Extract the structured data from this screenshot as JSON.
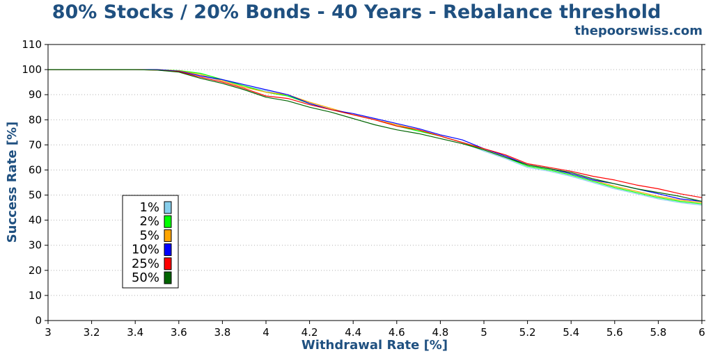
{
  "chart_data": {
    "type": "line",
    "title": "80% Stocks / 20% Bonds - 40 Years - Rebalance threshold",
    "subtitle": "thepoorswiss.com",
    "xlabel": "Withdrawal Rate [%]",
    "ylabel": "Success Rate [%]",
    "xlim": [
      3,
      6
    ],
    "ylim": [
      0,
      110
    ],
    "x_ticks": [
      "3",
      "3.2",
      "3.4",
      "3.6",
      "3.8",
      "4",
      "4.2",
      "4.4",
      "4.6",
      "4.8",
      "5",
      "5.2",
      "5.4",
      "5.6",
      "5.8",
      "6"
    ],
    "y_ticks": [
      "0",
      "10",
      "20",
      "30",
      "40",
      "50",
      "60",
      "70",
      "80",
      "90",
      "100",
      "110"
    ],
    "grid": "horizontal-dotted",
    "legend_position": "lower-left",
    "x": [
      3.0,
      3.2,
      3.4,
      3.5,
      3.6,
      3.7,
      3.8,
      3.9,
      4.0,
      4.1,
      4.2,
      4.3,
      4.4,
      4.5,
      4.6,
      4.7,
      4.8,
      4.9,
      5.0,
      5.1,
      5.2,
      5.3,
      5.4,
      5.5,
      5.6,
      5.7,
      5.8,
      5.9,
      6.0
    ],
    "series": [
      {
        "name": "1%",
        "color": "#87ceeb",
        "values": [
          100,
          100,
          100,
          100,
          99.4,
          97.5,
          95.5,
          93.5,
          91.5,
          89.5,
          86.5,
          84.0,
          82.0,
          80.0,
          78.0,
          76.0,
          73.5,
          71.0,
          67.5,
          64.5,
          61.0,
          59.5,
          57.5,
          55.0,
          52.5,
          50.5,
          48.5,
          47.0,
          46.0
        ]
      },
      {
        "name": "2%",
        "color": "#00ff00",
        "values": [
          100,
          100,
          100,
          100,
          99.6,
          98.5,
          96.0,
          93.5,
          91.0,
          89.5,
          86.5,
          84.0,
          82.0,
          80.0,
          77.5,
          75.5,
          73.5,
          71.0,
          68.0,
          65.0,
          61.5,
          60.0,
          58.0,
          55.5,
          53.0,
          51.0,
          49.0,
          47.5,
          46.5
        ]
      },
      {
        "name": "5%",
        "color": "#ffa500",
        "values": [
          100,
          100,
          100,
          100,
          99.5,
          98.0,
          95.5,
          93.0,
          91.0,
          90.0,
          87.0,
          84.5,
          82.0,
          80.0,
          78.0,
          76.0,
          73.5,
          71.0,
          68.5,
          65.5,
          62.0,
          60.5,
          58.5,
          56.0,
          53.5,
          51.5,
          49.5,
          48.0,
          47.0
        ]
      },
      {
        "name": "10%",
        "color": "#0000ff",
        "values": [
          100,
          100,
          100,
          100,
          99.4,
          97.5,
          96.0,
          94.0,
          92.0,
          90.0,
          86.5,
          84.0,
          82.5,
          80.5,
          78.5,
          76.5,
          74.0,
          72.0,
          68.5,
          65.5,
          62.0,
          60.5,
          58.5,
          56.0,
          54.5,
          52.5,
          50.5,
          48.5,
          47.5
        ]
      },
      {
        "name": "25%",
        "color": "#ff0000",
        "values": [
          100,
          100,
          100,
          99.8,
          99.2,
          97.0,
          95.0,
          92.5,
          89.5,
          88.5,
          86.0,
          84.0,
          82.0,
          80.0,
          77.5,
          76.0,
          73.5,
          71.0,
          68.5,
          66.0,
          62.5,
          61.0,
          59.5,
          57.5,
          56.0,
          54.0,
          52.5,
          50.5,
          49.0
        ]
      },
      {
        "name": "50%",
        "color": "#006400",
        "values": [
          100,
          100,
          100,
          99.8,
          99.0,
          96.5,
          94.5,
          92.0,
          89.0,
          87.5,
          85.0,
          83.0,
          80.5,
          78.0,
          76.0,
          74.5,
          72.5,
          70.5,
          68.0,
          65.0,
          62.0,
          60.5,
          59.0,
          56.5,
          54.5,
          52.5,
          51.0,
          49.5,
          47.5
        ]
      }
    ]
  }
}
